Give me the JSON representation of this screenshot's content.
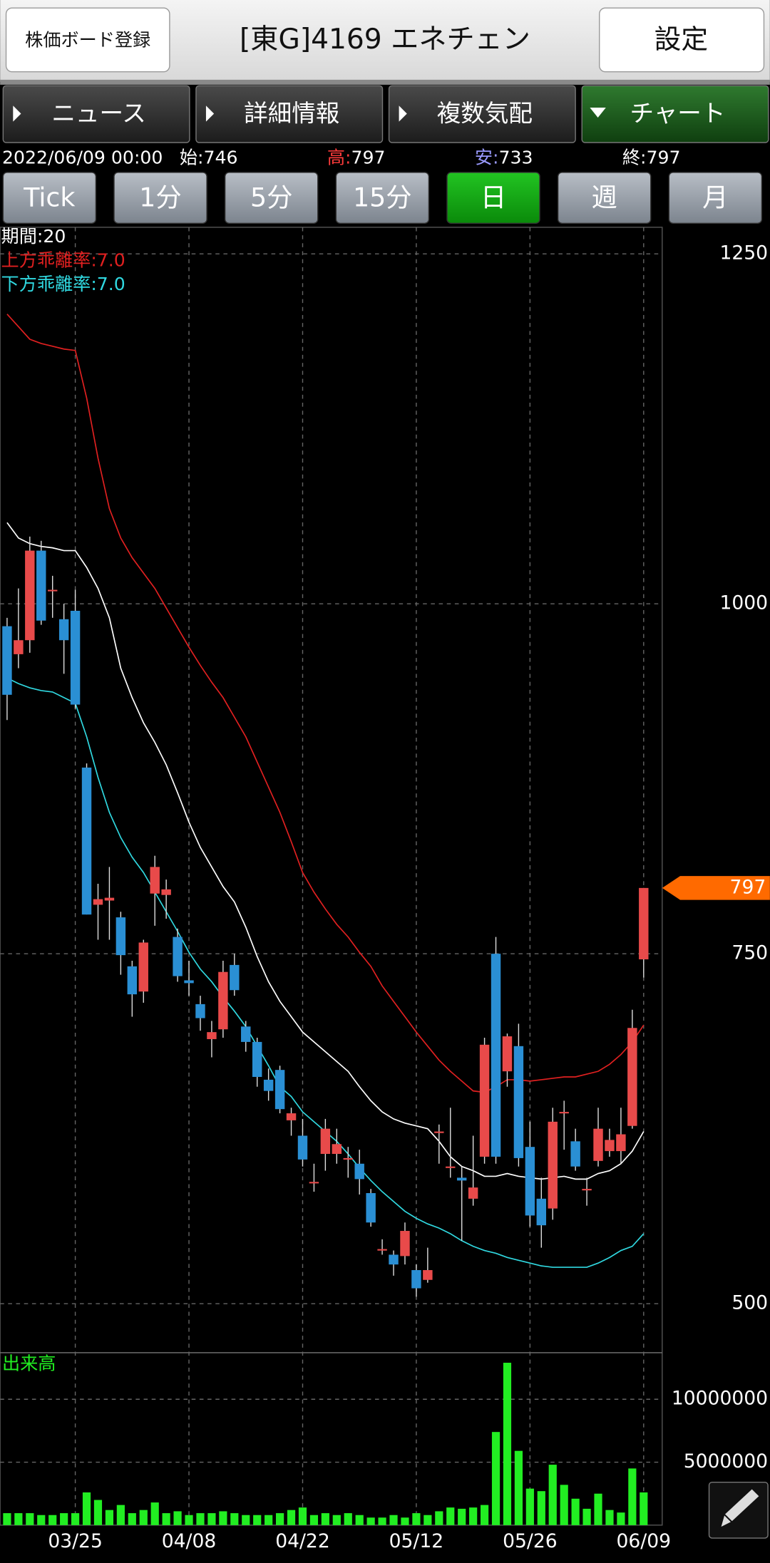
{
  "header": {
    "register_button": "株価ボード登録",
    "title": "[東G]4169 エネチェン",
    "settings_button": "設定"
  },
  "tabs": [
    "ニュース",
    "詳細情報",
    "複数気配",
    "チャート"
  ],
  "active_tab": 3,
  "quote": {
    "datetime": "2022/06/09 00:00",
    "open_label": "始:",
    "open": 746,
    "high_label": "高:",
    "high": 797,
    "low_label": "安:",
    "low": 733,
    "close_label": "終:",
    "close": 797
  },
  "periods": [
    "Tick",
    "1分",
    "5分",
    "15分",
    "日",
    "週",
    "月"
  ],
  "active_period": 4,
  "chart_data": [
    {
      "type": "candlestick",
      "categories": [
        null,
        null,
        null,
        null,
        null,
        null,
        "03/25",
        null,
        null,
        null,
        null,
        null,
        null,
        null,
        null,
        null,
        "04/08",
        null,
        null,
        null,
        null,
        null,
        null,
        null,
        null,
        null,
        "04/22",
        null,
        null,
        null,
        null,
        null,
        null,
        null,
        null,
        null,
        "05/12",
        null,
        null,
        null,
        null,
        null,
        null,
        null,
        null,
        null,
        "05/26",
        null,
        null,
        null,
        null,
        null,
        null,
        null,
        null,
        null,
        "06/09"
      ],
      "open": [
        984,
        964,
        974,
        1038,
        1009,
        989,
        995,
        883,
        785,
        788,
        776,
        741,
        723,
        793,
        792,
        762,
        731,
        714,
        689,
        696,
        742,
        698,
        687,
        660,
        667,
        631,
        620,
        586,
        607,
        607,
        604,
        600,
        579,
        539,
        535,
        534,
        524,
        517,
        623,
        598,
        590,
        575,
        605,
        750,
        666,
        684,
        612,
        575,
        568,
        636,
        616,
        582,
        602,
        609,
        609,
        627,
        746
      ],
      "high": [
        990,
        1011,
        1048,
        1045,
        1020,
        1000,
        1010,
        886,
        800,
        812,
        780,
        745,
        760,
        820,
        803,
        768,
        745,
        720,
        702,
        745,
        750,
        702,
        690,
        668,
        670,
        640,
        632,
        600,
        632,
        625,
        612,
        610,
        582,
        546,
        538,
        558,
        528,
        540,
        628,
        640,
        598,
        620,
        690,
        762,
        693,
        700,
        630,
        590,
        640,
        645,
        625,
        590,
        640,
        625,
        640,
        710,
        797
      ],
      "low": [
        917,
        954,
        965,
        985,
        990,
        950,
        925,
        778,
        760,
        760,
        735,
        705,
        715,
        770,
        775,
        730,
        720,
        695,
        676,
        690,
        720,
        680,
        655,
        645,
        636,
        620,
        598,
        580,
        595,
        600,
        590,
        578,
        555,
        535,
        520,
        528,
        505,
        515,
        600,
        590,
        545,
        570,
        600,
        600,
        655,
        598,
        555,
        540,
        560,
        610,
        595,
        570,
        598,
        605,
        600,
        625,
        733
      ],
      "close": [
        935,
        974,
        1038,
        988,
        1010,
        974,
        928,
        778,
        789,
        790,
        749,
        721,
        758,
        812,
        796,
        734,
        729,
        704,
        694,
        737,
        724,
        687,
        662,
        652,
        639,
        636,
        603,
        587,
        625,
        614,
        604,
        589,
        558,
        539,
        528,
        552,
        511,
        524,
        623,
        598,
        588,
        583,
        685,
        605,
        691,
        604,
        563,
        556,
        630,
        637,
        598,
        582,
        625,
        617,
        621,
        697,
        797
      ],
      "up_color": "#e84a4a",
      "down_color": "#2a8fd4",
      "series": [
        {
          "name": "期間:20",
          "color": "#ffffff",
          "values": [
            1058,
            1047,
            1043,
            1041,
            1040,
            1038,
            1038,
            1026,
            1011,
            990,
            954,
            933,
            915,
            901,
            885,
            865,
            844,
            826,
            812,
            798,
            787,
            769,
            748,
            730,
            716,
            705,
            694,
            687,
            680,
            673,
            666,
            655,
            645,
            637,
            632,
            629,
            627,
            625,
            616,
            605,
            598,
            595,
            591,
            591,
            593,
            591,
            590,
            589,
            590,
            591,
            589,
            589,
            593,
            595,
            600,
            609,
            623
          ]
        },
        {
          "name": "上方乖離率:7.0",
          "color": "#e02020",
          "values": [
            1207,
            1198,
            1189,
            1186,
            1184,
            1182,
            1181,
            1147,
            1104,
            1068,
            1047,
            1033,
            1022,
            1011,
            997,
            983,
            969,
            956,
            944,
            933,
            919,
            905,
            887,
            869,
            851,
            830,
            808,
            794,
            782,
            771,
            762,
            751,
            741,
            727,
            716,
            705,
            694,
            684,
            674,
            666,
            659,
            652,
            651,
            655,
            660,
            660,
            659,
            660,
            661,
            662,
            662,
            664,
            666,
            671,
            678,
            687,
            699
          ]
        },
        {
          "name": "下方乖離率:7.0",
          "color": "#30d8e0",
          "values": [
            947,
            943,
            940,
            938,
            937,
            933,
            929,
            905,
            876,
            851,
            833,
            819,
            808,
            794,
            780,
            766,
            751,
            739,
            730,
            719,
            709,
            698,
            684,
            670,
            655,
            648,
            637,
            630,
            623,
            616,
            607,
            597,
            588,
            580,
            573,
            566,
            561,
            557,
            554,
            550,
            545,
            541,
            538,
            536,
            533,
            531,
            529,
            527,
            526,
            526,
            526,
            526,
            529,
            533,
            538,
            541,
            550
          ]
        }
      ],
      "ylim": [
        465,
        1269
      ],
      "yticks": [
        500,
        750,
        1000,
        1250
      ],
      "grid": true
    },
    {
      "type": "bar",
      "title": "出来高",
      "color": "#22ee22",
      "values": [
        950000,
        950000,
        950000,
        800000,
        800000,
        950000,
        950000,
        2600000,
        2000000,
        1200000,
        1600000,
        950000,
        1200000,
        1800000,
        950000,
        1100000,
        800000,
        950000,
        950000,
        1100000,
        950000,
        800000,
        800000,
        800000,
        950000,
        1200000,
        1400000,
        800000,
        950000,
        800000,
        950000,
        800000,
        600000,
        600000,
        800000,
        600000,
        950000,
        800000,
        1100000,
        1400000,
        1300000,
        1400000,
        1600000,
        7400000,
        12900000,
        5900000,
        2900000,
        2700000,
        4800000,
        3200000,
        2100000,
        1300000,
        2500000,
        1200000,
        1000000,
        4500000,
        2600000
      ],
      "ylim": [
        0,
        13700000
      ],
      "yticks": [
        5000000,
        10000000
      ],
      "grid": true
    }
  ]
}
